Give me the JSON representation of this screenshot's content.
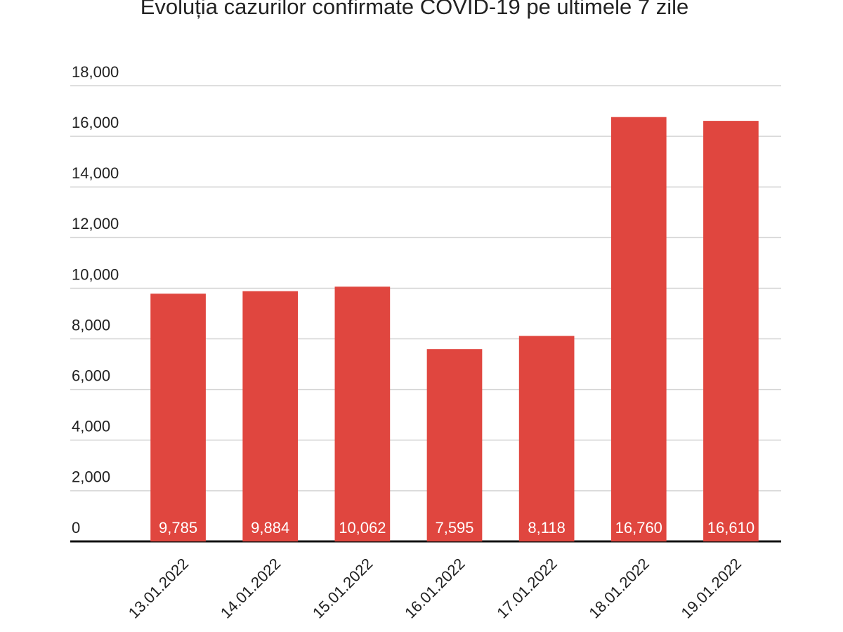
{
  "chart_data": {
    "type": "bar",
    "title": "Evoluția cazurilor confirmate COVID-19 pe ultimele 7 zile",
    "categories": [
      "13.01.2022",
      "14.01.2022",
      "15.01.2022",
      "16.01.2022",
      "17.01.2022",
      "18.01.2022",
      "19.01.2022"
    ],
    "values": [
      9785,
      9884,
      10062,
      7595,
      8118,
      16760,
      16610
    ],
    "value_labels": [
      "9,785",
      "9,884",
      "10,062",
      "7,595",
      "8,118",
      "16,760",
      "16,610"
    ],
    "color": "#e0463f",
    "ylim": [
      0,
      18000
    ],
    "yticks": [
      0,
      {
        "value": 2000,
        "label": "2,000"
      },
      {
        "value": 4000,
        "label": "4,000"
      },
      {
        "value": 6000,
        "label": "6,000"
      },
      {
        "value": 8000,
        "label": "8,000"
      },
      {
        "value": 10000,
        "label": "10,000"
      },
      {
        "value": 12000,
        "label": "12,000"
      },
      {
        "value": 14000,
        "label": "14,000"
      },
      {
        "value": 16000,
        "label": "16,000"
      },
      {
        "value": 18000,
        "label": "18,000"
      }
    ],
    "grid": true
  }
}
